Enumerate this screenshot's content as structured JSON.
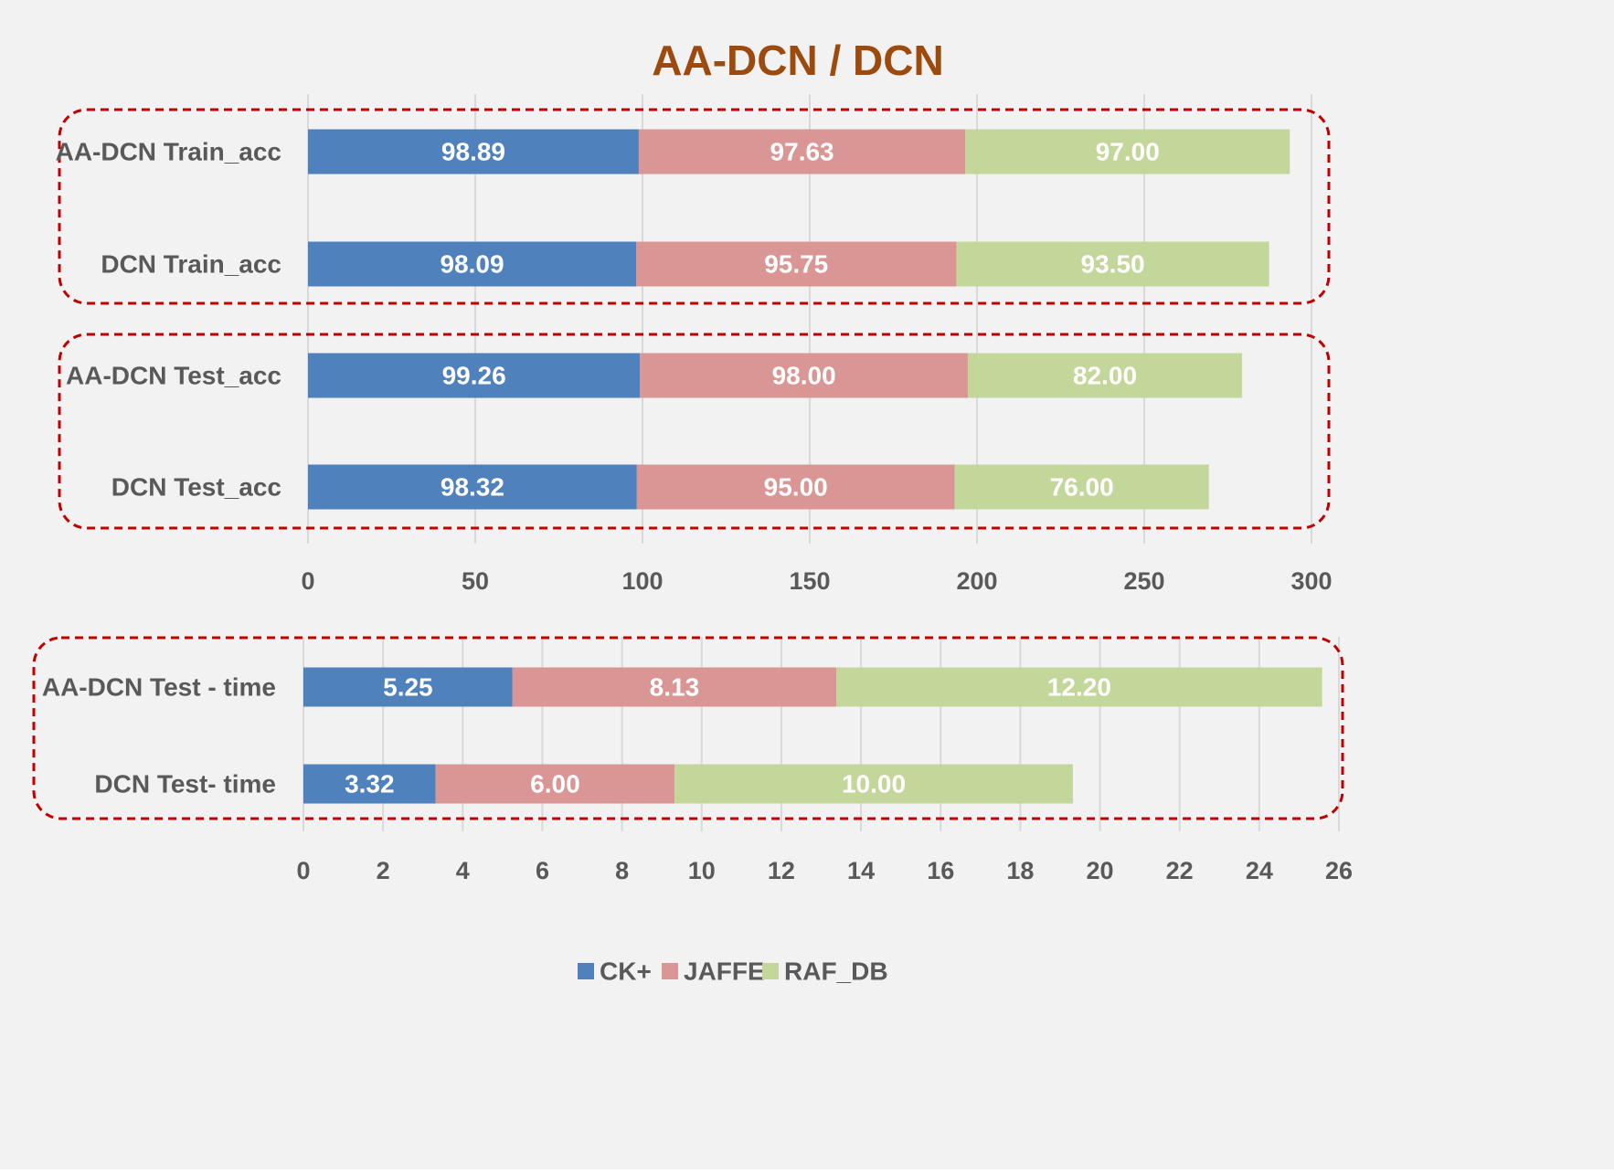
{
  "chart_data": {
    "title": "AA-DCN / DCN",
    "type": "bar",
    "orientation": "horizontal",
    "stacked": true,
    "legend": [
      {
        "name": "CK+",
        "color": "#4f81bd"
      },
      {
        "name": "JAFFE",
        "color": "#da9694"
      },
      {
        "name": "RAF_DB",
        "color": "#c4d79b"
      }
    ],
    "colors": {
      "title": "#9c4a0e",
      "axis_text": "#595959",
      "data_label": "#ffffff",
      "background": "#f2f2f2",
      "gridline": "#d9d9d9",
      "group_border": "#c00000"
    },
    "charts": [
      {
        "categories": [
          "AA-DCN Train_acc",
          "DCN Train_acc",
          "AA-DCN Test_acc",
          "DCN Test_acc"
        ],
        "series": [
          {
            "name": "CK+",
            "values": [
              98.89,
              98.09,
              99.26,
              98.32
            ],
            "labels": [
              "98.89",
              "98.09",
              "99.26",
              "98.32"
            ]
          },
          {
            "name": "JAFFE",
            "values": [
              97.63,
              95.75,
              98.0,
              95.0
            ],
            "labels": [
              "97.63",
              "95.75",
              "98.00",
              "95.00"
            ]
          },
          {
            "name": "RAF_DB",
            "values": [
              97.0,
              93.5,
              82.0,
              76.0
            ],
            "labels": [
              "97.00",
              "93.50",
              "82.00",
              "76.00"
            ]
          }
        ],
        "xlim": [
          0,
          300
        ],
        "ticks": [
          0,
          50,
          100,
          150,
          200,
          250,
          300
        ],
        "grid": true,
        "groups": [
          [
            "AA-DCN Train_acc",
            "DCN Train_acc"
          ],
          [
            "AA-DCN Test_acc",
            "DCN Test_acc"
          ]
        ]
      },
      {
        "categories": [
          "AA-DCN Test - time",
          "DCN Test- time"
        ],
        "series": [
          {
            "name": "CK+",
            "values": [
              5.25,
              3.32
            ],
            "labels": [
              "5.25",
              "3.32"
            ]
          },
          {
            "name": "JAFFE",
            "values": [
              8.13,
              6.0
            ],
            "labels": [
              "8.13",
              "6.00"
            ]
          },
          {
            "name": "RAF_DB",
            "values": [
              12.2,
              10.0
            ],
            "labels": [
              "12.20",
              "10.00"
            ]
          }
        ],
        "xlim": [
          0,
          26
        ],
        "ticks": [
          0,
          2,
          4,
          6,
          8,
          10,
          12,
          14,
          16,
          18,
          20,
          22,
          24,
          26
        ],
        "grid": true,
        "groups": [
          [
            "AA-DCN Test - time",
            "DCN Test- time"
          ]
        ]
      }
    ]
  }
}
